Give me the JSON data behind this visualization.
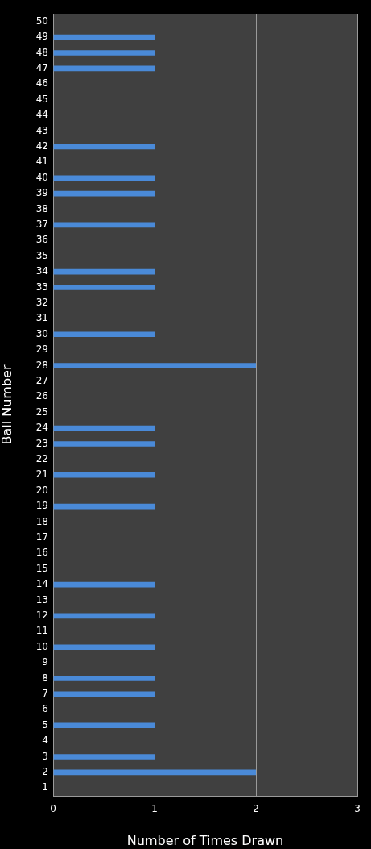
{
  "chart_data": {
    "type": "bar",
    "orientation": "horizontal",
    "xlabel": "Number of Times Drawn",
    "ylabel": "Ball Number",
    "categories": [
      "50",
      "49",
      "48",
      "47",
      "46",
      "45",
      "44",
      "43",
      "42",
      "41",
      "40",
      "39",
      "38",
      "37",
      "36",
      "35",
      "34",
      "33",
      "32",
      "31",
      "30",
      "29",
      "28",
      "27",
      "26",
      "25",
      "24",
      "23",
      "22",
      "21",
      "20",
      "19",
      "18",
      "17",
      "16",
      "15",
      "14",
      "13",
      "12",
      "11",
      "10",
      "9",
      "8",
      "7",
      "6",
      "5",
      "4",
      "3",
      "2",
      "1"
    ],
    "values": [
      0,
      1,
      1,
      1,
      0,
      0,
      0,
      0,
      1,
      0,
      1,
      1,
      0,
      1,
      0,
      0,
      1,
      1,
      0,
      0,
      1,
      0,
      2,
      0,
      0,
      0,
      1,
      1,
      0,
      1,
      0,
      1,
      0,
      0,
      0,
      0,
      1,
      0,
      1,
      0,
      1,
      0,
      1,
      1,
      0,
      1,
      0,
      1,
      2,
      0
    ],
    "color": "#4a8ad8",
    "xlim": [
      0,
      3
    ],
    "xticks": [
      0,
      1,
      2,
      3
    ],
    "grid": "x"
  }
}
